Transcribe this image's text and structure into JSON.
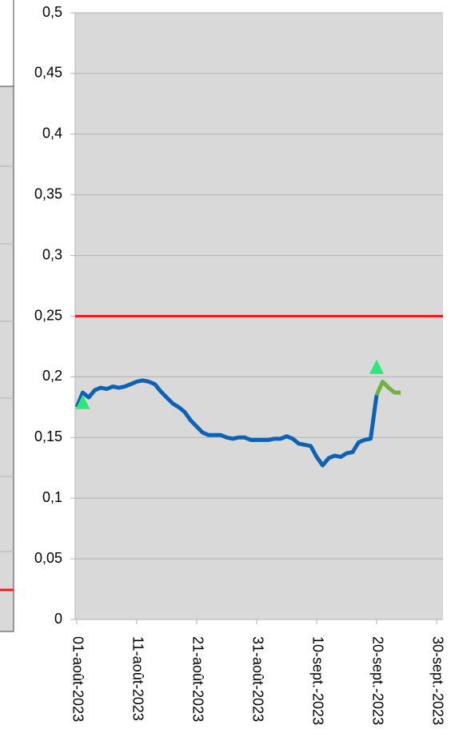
{
  "chart_data": {
    "type": "line",
    "ylim": [
      0,
      0.5
    ],
    "yticks": [
      0,
      {
        "value": 0.05,
        "label": "0,05"
      },
      {
        "value": 0.1,
        "label": "0,1"
      },
      {
        "value": 0.15,
        "label": "0,15"
      },
      {
        "value": 0.2,
        "label": "0,2"
      },
      {
        "value": 0.25,
        "label": "0,25"
      },
      {
        "value": 0.3,
        "label": "0,3"
      },
      {
        "value": 0.35,
        "label": "0,35"
      },
      {
        "value": 0.4,
        "label": "0,4"
      },
      {
        "value": 0.45,
        "label": "0,45"
      },
      {
        "value": 0.5,
        "label": "0,5"
      }
    ],
    "xlim": [
      "2023-08-01",
      "2023-09-30"
    ],
    "xticks": [
      {
        "value": "2023-08-01",
        "label": "01-août-2023"
      },
      {
        "value": "2023-08-11",
        "label": "11-août-2023"
      },
      {
        "value": "2023-08-21",
        "label": "21-août-2023"
      },
      {
        "value": "2023-08-31",
        "label": "31-août-2023"
      },
      {
        "value": "2023-09-10",
        "label": "10-sept.-2023"
      },
      {
        "value": "2023-09-20",
        "label": "20-sept.-2023"
      },
      {
        "value": "2023-09-30",
        "label": "30-sept.-2023"
      }
    ],
    "grid": true,
    "series": [
      {
        "color": "#0e62b4",
        "x_start": "2023-08-01",
        "values": [
          0.175,
          0.187,
          0.183,
          0.189,
          0.191,
          0.19,
          0.192,
          0.191,
          0.192,
          0.194,
          0.196,
          0.197,
          0.196,
          0.194,
          0.188,
          0.183,
          0.178,
          0.175,
          0.171,
          0.164,
          0.159,
          0.154,
          0.152,
          0.152,
          0.152,
          0.15,
          0.149,
          0.15,
          0.15,
          0.148,
          0.148,
          0.148,
          0.148,
          0.149,
          0.149,
          0.151,
          0.149,
          0.145,
          0.144,
          0.143,
          0.134,
          0.127,
          0.133,
          0.135,
          0.134,
          0.137,
          0.138,
          0.146,
          0.148,
          0.149,
          0.185
        ]
      },
      {
        "color": "#72b043",
        "x_start": "2023-09-20",
        "values": [
          0.185,
          0.196,
          0.191,
          0.187,
          0.187
        ]
      }
    ],
    "points": {
      "color": "#2fe67a",
      "x": [
        "2023-08-02",
        "2023-09-20"
      ],
      "values": [
        0.178,
        0.207
      ]
    },
    "threshold": {
      "value": 0.25,
      "color": "#ee1c1c"
    }
  }
}
